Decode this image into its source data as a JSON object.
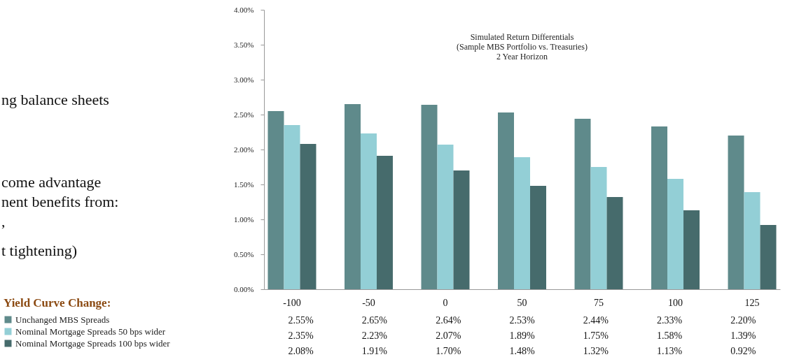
{
  "chart_data": {
    "type": "bar",
    "title": "Simulated Return Differentials",
    "subtitle": "(Sample MBS Portfolio vs. Treasuries)\n2 Year Horizon",
    "legend_title": "Yield Curve Change:",
    "legend": "bottom left",
    "categories": [
      "-100",
      "-50",
      "0",
      "50",
      "75",
      "100",
      "125"
    ],
    "series": [
      {
        "name": "Unchanged MBS Spreads",
        "color": "#5f8a8b",
        "values": [
          2.55,
          2.65,
          2.64,
          2.53,
          2.44,
          2.33,
          2.2
        ],
        "value_labels": [
          "2.55%",
          "2.65%",
          "2.64%",
          "2.53%",
          "2.44%",
          "2.33%",
          "2.20%"
        ]
      },
      {
        "name": "Nominal Mortgage Spreads 50 bps wider",
        "color": "#93cfd6",
        "values": [
          2.35,
          2.23,
          2.07,
          1.89,
          1.75,
          1.58,
          1.39
        ],
        "value_labels": [
          "2.35%",
          "2.23%",
          "2.07%",
          "1.89%",
          "1.75%",
          "1.58%",
          "1.39%"
        ]
      },
      {
        "name": "Nominal Mortgage Spreads 100 bps wider",
        "color": "#466b6c",
        "values": [
          2.08,
          1.91,
          1.7,
          1.48,
          1.32,
          1.13,
          0.92
        ],
        "value_labels": [
          "2.08%",
          "1.91%",
          "1.70%",
          "1.48%",
          "1.32%",
          "1.13%",
          "0.92%"
        ]
      }
    ],
    "ylim": [
      0,
      4
    ],
    "yticks": [
      {
        "value": 0,
        "label": "0.00%"
      },
      {
        "value": 0.5,
        "label": "0.50%"
      },
      {
        "value": 1,
        "label": "1.00%"
      },
      {
        "value": 1.5,
        "label": "1.50%"
      },
      {
        "value": 2,
        "label": "2.00%"
      },
      {
        "value": 2.5,
        "label": "2.50%"
      },
      {
        "value": 3,
        "label": "3.00%"
      },
      {
        "value": 3.5,
        "label": "3.50%"
      },
      {
        "value": 4,
        "label": "4.00%"
      }
    ],
    "grid": false,
    "annotations": [
      "ng balance sheets",
      "come advantage",
      "nent benefits from:",
      ",",
      "t tightening)"
    ]
  }
}
